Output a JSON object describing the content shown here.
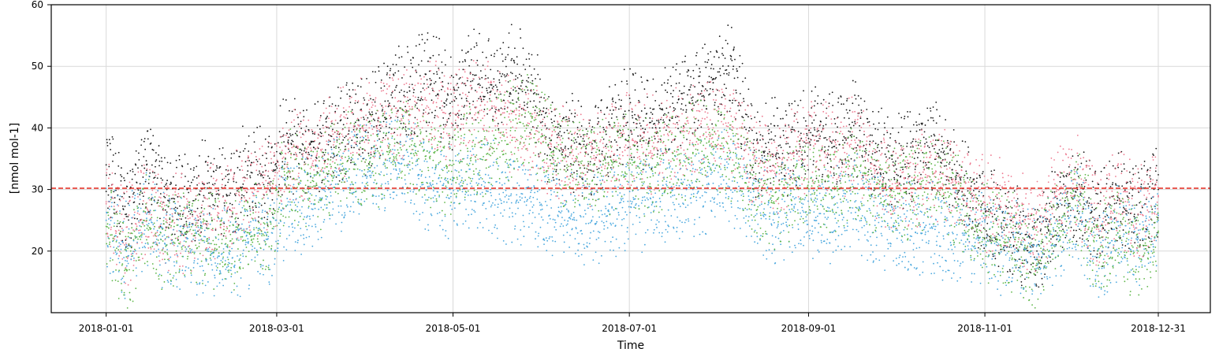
{
  "chart_data": {
    "type": "scatter",
    "title": "",
    "xlabel": "Time",
    "ylabel": "[nmol mol-1]",
    "xlim": [
      "2017-12-13",
      "2019-01-18"
    ],
    "ylim": [
      10,
      60
    ],
    "grid": true,
    "legend": "none",
    "x_ticks": [
      "2018-01-01",
      "2018-03-01",
      "2018-05-01",
      "2018-07-01",
      "2018-09-01",
      "2018-11-01",
      "2018-12-31"
    ],
    "y_ticks": [
      20,
      30,
      40,
      50,
      60
    ],
    "reference_line": {
      "y": 30.2,
      "style": "dashed",
      "color": "#e3261b"
    },
    "series": [
      {
        "color": "#1a1a1a",
        "x": [
          "2018-01-01",
          "2018-01-08",
          "2018-01-15",
          "2018-01-22",
          "2018-01-29",
          "2018-02-05",
          "2018-02-12",
          "2018-02-19",
          "2018-02-26",
          "2018-03-05",
          "2018-03-12",
          "2018-03-19",
          "2018-03-26",
          "2018-04-02",
          "2018-04-09",
          "2018-04-16",
          "2018-04-23",
          "2018-04-30",
          "2018-05-07",
          "2018-05-14",
          "2018-05-21",
          "2018-05-28",
          "2018-06-04",
          "2018-06-11",
          "2018-06-18",
          "2018-06-25",
          "2018-07-02",
          "2018-07-09",
          "2018-07-16",
          "2018-07-23",
          "2018-07-30",
          "2018-08-06",
          "2018-08-13",
          "2018-08-20",
          "2018-08-27",
          "2018-09-03",
          "2018-09-10",
          "2018-09-17",
          "2018-09-24",
          "2018-10-01",
          "2018-10-08",
          "2018-10-15",
          "2018-10-22",
          "2018-10-29",
          "2018-11-05",
          "2018-11-12",
          "2018-11-19",
          "2018-11-26",
          "2018-12-03",
          "2018-12-10",
          "2018-12-17",
          "2018-12-24",
          "2018-12-31"
        ],
        "y": [
          34,
          26,
          34,
          30,
          27,
          31,
          29,
          33,
          31,
          38,
          36,
          38,
          40,
          41,
          44,
          46,
          48,
          44,
          49,
          47,
          49,
          46,
          38,
          38,
          36,
          40,
          42,
          40,
          44,
          45,
          48,
          50,
          36,
          38,
          36,
          40,
          37,
          41,
          36,
          34,
          36,
          38,
          32,
          27,
          25,
          23,
          20,
          27,
          30,
          25,
          29,
          26,
          30
        ]
      },
      {
        "color": "#ee7a90",
        "x": [
          "2018-01-01",
          "2018-01-08",
          "2018-01-15",
          "2018-01-22",
          "2018-01-29",
          "2018-02-05",
          "2018-02-12",
          "2018-02-19",
          "2018-02-26",
          "2018-03-05",
          "2018-03-12",
          "2018-03-19",
          "2018-03-26",
          "2018-04-02",
          "2018-04-09",
          "2018-04-16",
          "2018-04-23",
          "2018-04-30",
          "2018-05-07",
          "2018-05-14",
          "2018-05-21",
          "2018-05-28",
          "2018-06-04",
          "2018-06-11",
          "2018-06-18",
          "2018-06-25",
          "2018-07-02",
          "2018-07-09",
          "2018-07-16",
          "2018-07-23",
          "2018-07-30",
          "2018-08-06",
          "2018-08-13",
          "2018-08-20",
          "2018-08-27",
          "2018-09-03",
          "2018-09-10",
          "2018-09-17",
          "2018-09-24",
          "2018-10-01",
          "2018-10-08",
          "2018-10-15",
          "2018-10-22",
          "2018-10-29",
          "2018-11-05",
          "2018-11-12",
          "2018-11-19",
          "2018-11-26",
          "2018-12-03",
          "2018-12-10",
          "2018-12-17",
          "2018-12-24",
          "2018-12-31"
        ],
        "y": [
          28,
          22,
          27,
          25,
          24,
          26,
          27,
          30,
          30,
          36,
          35,
          38,
          40,
          40,
          42,
          42,
          43,
          42,
          43,
          43,
          41,
          39,
          37,
          36,
          35,
          37,
          38,
          37,
          38,
          39,
          40,
          40,
          35,
          33,
          36,
          38,
          36,
          38,
          33,
          31,
          32,
          33,
          31,
          28,
          27,
          26,
          24,
          30,
          31,
          24,
          29,
          26,
          29
        ]
      },
      {
        "color": "#4aa8de",
        "x": [
          "2018-01-01",
          "2018-01-08",
          "2018-01-15",
          "2018-01-22",
          "2018-01-29",
          "2018-02-05",
          "2018-02-12",
          "2018-02-19",
          "2018-02-26",
          "2018-03-05",
          "2018-03-12",
          "2018-03-19",
          "2018-03-26",
          "2018-04-02",
          "2018-04-09",
          "2018-04-16",
          "2018-04-23",
          "2018-04-30",
          "2018-05-07",
          "2018-05-14",
          "2018-05-21",
          "2018-05-28",
          "2018-06-04",
          "2018-06-11",
          "2018-06-18",
          "2018-06-25",
          "2018-07-02",
          "2018-07-09",
          "2018-07-16",
          "2018-07-23",
          "2018-07-30",
          "2018-08-06",
          "2018-08-13",
          "2018-08-20",
          "2018-08-27",
          "2018-09-03",
          "2018-09-10",
          "2018-09-17",
          "2018-09-24",
          "2018-10-01",
          "2018-10-08",
          "2018-10-15",
          "2018-10-22",
          "2018-10-29",
          "2018-11-05",
          "2018-11-12",
          "2018-11-19",
          "2018-11-26",
          "2018-12-03",
          "2018-12-10",
          "2018-12-17",
          "2018-12-24",
          "2018-12-31"
        ],
        "y": [
          25,
          20,
          26,
          21,
          22,
          20,
          19,
          22,
          22,
          28,
          27,
          30,
          32,
          33,
          35,
          34,
          31,
          30,
          31,
          30,
          29,
          28,
          27,
          26,
          25,
          27,
          28,
          28,
          29,
          30,
          31,
          32,
          28,
          26,
          27,
          25,
          26,
          28,
          25,
          24,
          23,
          24,
          22,
          22,
          21,
          20,
          19,
          22,
          27,
          19,
          23,
          22,
          25
        ]
      },
      {
        "color": "#5cb547",
        "x": [
          "2018-01-01",
          "2018-01-08",
          "2018-01-15",
          "2018-01-22",
          "2018-01-29",
          "2018-02-05",
          "2018-02-12",
          "2018-02-19",
          "2018-02-26",
          "2018-03-05",
          "2018-03-12",
          "2018-03-19",
          "2018-03-26",
          "2018-04-02",
          "2018-04-09",
          "2018-04-16",
          "2018-04-23",
          "2018-04-30",
          "2018-05-07",
          "2018-05-14",
          "2018-05-21",
          "2018-05-28",
          "2018-06-04",
          "2018-06-11",
          "2018-06-18",
          "2018-06-25",
          "2018-07-02",
          "2018-07-09",
          "2018-07-16",
          "2018-07-23",
          "2018-07-30",
          "2018-08-06",
          "2018-08-13",
          "2018-08-20",
          "2018-08-27",
          "2018-09-03",
          "2018-09-10",
          "2018-09-17",
          "2018-09-24",
          "2018-10-01",
          "2018-10-08",
          "2018-10-15",
          "2018-10-22",
          "2018-10-29",
          "2018-11-05",
          "2018-11-12",
          "2018-11-19",
          "2018-11-26",
          "2018-12-03",
          "2018-12-10",
          "2018-12-17",
          "2018-12-24",
          "2018-12-31"
        ],
        "y": [
          24,
          17,
          25,
          21,
          23,
          22,
          21,
          23,
          24,
          33,
          30,
          33,
          35,
          34,
          36,
          37,
          35,
          34,
          35,
          37,
          40,
          41,
          36,
          34,
          33,
          34,
          34,
          33,
          35,
          36,
          37,
          36,
          30,
          28,
          30,
          31,
          30,
          33,
          30,
          29,
          30,
          32,
          28,
          24,
          22,
          21,
          18,
          24,
          29,
          20,
          23,
          20,
          23
        ]
      }
    ]
  }
}
